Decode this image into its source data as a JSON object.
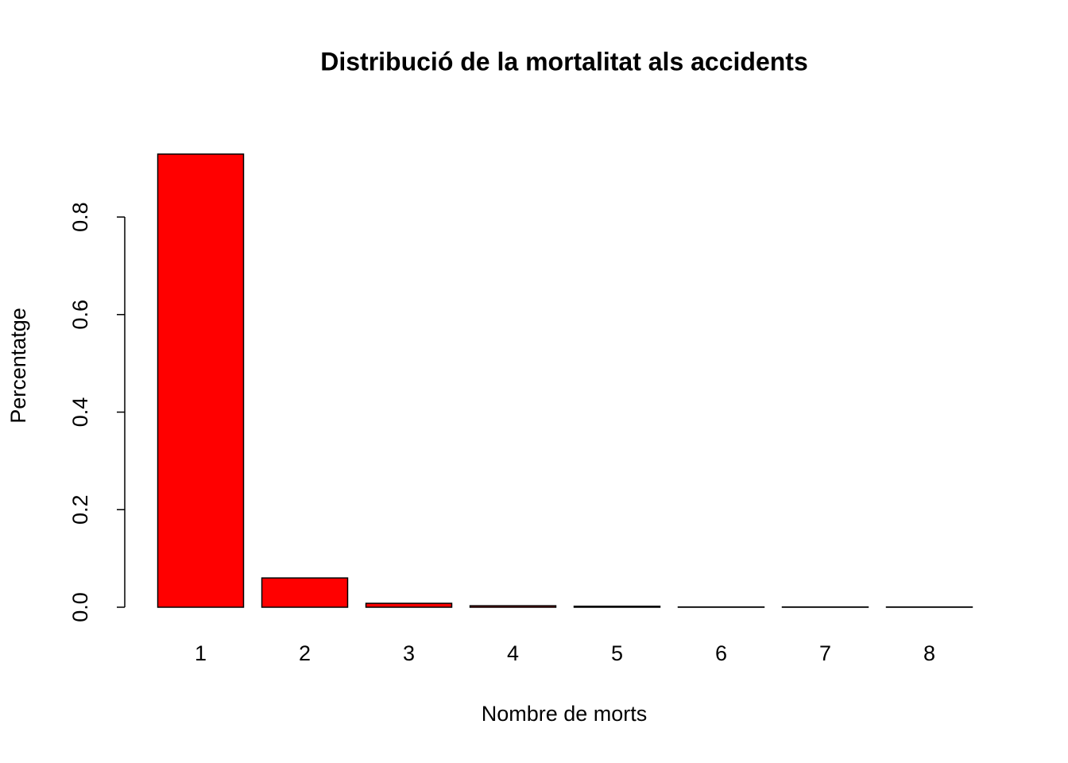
{
  "chart_data": {
    "type": "bar",
    "title": "Distribució de la mortalitat als accidents",
    "x_label": "Nombre de morts",
    "y_label": "Percentatge",
    "categories": [
      "1",
      "2",
      "3",
      "4",
      "5",
      "6",
      "7",
      "8"
    ],
    "values": [
      0.929,
      0.06,
      0.008,
      0.003,
      0.002,
      0.0005,
      0.0005,
      0.0005
    ],
    "color": "#ff0000",
    "ylim": [
      0,
      0.95
    ],
    "yticks": [
      {
        "value": 0,
        "label": "0.0"
      },
      {
        "value": 0.2,
        "label": "0.2"
      },
      {
        "value": 0.4,
        "label": "0.4"
      },
      {
        "value": 0.6,
        "label": "0.6"
      },
      {
        "value": 0.8,
        "label": "0.8"
      }
    ],
    "grid": false
  }
}
